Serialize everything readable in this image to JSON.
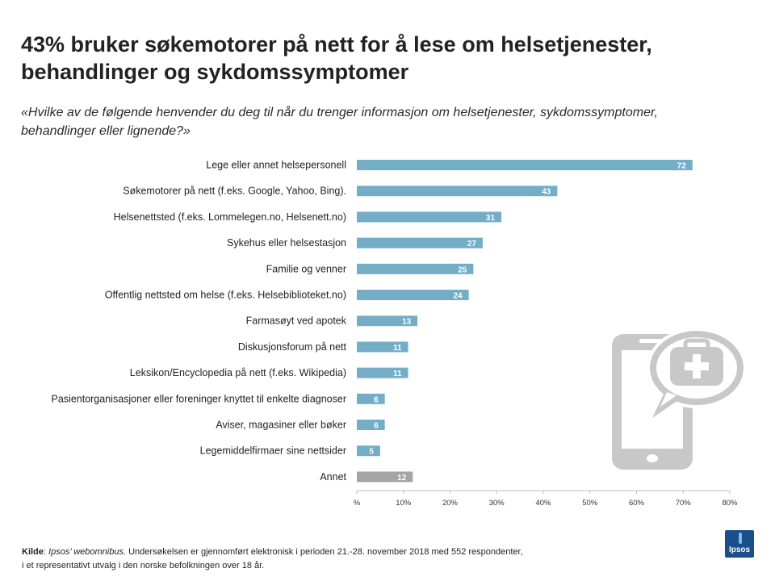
{
  "header": {
    "title_line1": "43% bruker søkemotorer på nett for å lese om helsetjenester,",
    "title_line2": "behandlinger og sykdomssymptomer",
    "subtitle_line1": "«Hvilke av de følgende henvender du deg til når du trenger informasjon om helsetjenester, sykdomssymptomer,",
    "subtitle_line2": "behandlinger eller lignende?»"
  },
  "chart_data": {
    "type": "bar",
    "orientation": "horizontal",
    "categories": [
      "Lege eller annet helsepersonell",
      "Søkemotorer på nett (f.eks. Google, Yahoo, Bing).",
      "Helsenettsted (f.eks. Lommelegen.no, Helsenett.no)",
      "Sykehus eller helsestasjon",
      "Familie og venner",
      "Offentlig nettsted om helse (f.eks. Helsebiblioteket.no)",
      "Farmasøyt ved apotek",
      "Diskusjonsforum på nett",
      "Leksikon/Encyclopedia på nett (f.eks. Wikipedia)",
      "Pasientorganisasjoner eller foreninger knyttet til enkelte diagnoser",
      "Aviser, magasiner eller bøker",
      "Legemiddelfirmaer sine nettsider",
      "Annet"
    ],
    "values": [
      72,
      43,
      31,
      27,
      25,
      24,
      13,
      11,
      11,
      6,
      6,
      5,
      12
    ],
    "xlim": [
      0,
      80
    ],
    "ticks": [
      "%",
      "10%",
      "20%",
      "30%",
      "40%",
      "50%",
      "60%",
      "70%",
      "80%"
    ],
    "colors": {
      "main": "#74adc6",
      "other": "#a5a5a5"
    },
    "highlight_category": "Annet",
    "data_labels": "inside-end",
    "grid": false
  },
  "footer": {
    "source_label": "Kilde",
    "source_name": "Ipsos’ webomnibus.",
    "source_text": " Undersøkelsen er gjennomført elektronisk i perioden 21.-28. november  2018 med  552 respondenter,",
    "source_line2": "i et representativt utvalg i den norske befolkningen over 18 år.",
    "logo_text": "Ipsos"
  },
  "decoration": {
    "icon": "phone-medical-kit-icon",
    "color": "#c8c8c8"
  }
}
